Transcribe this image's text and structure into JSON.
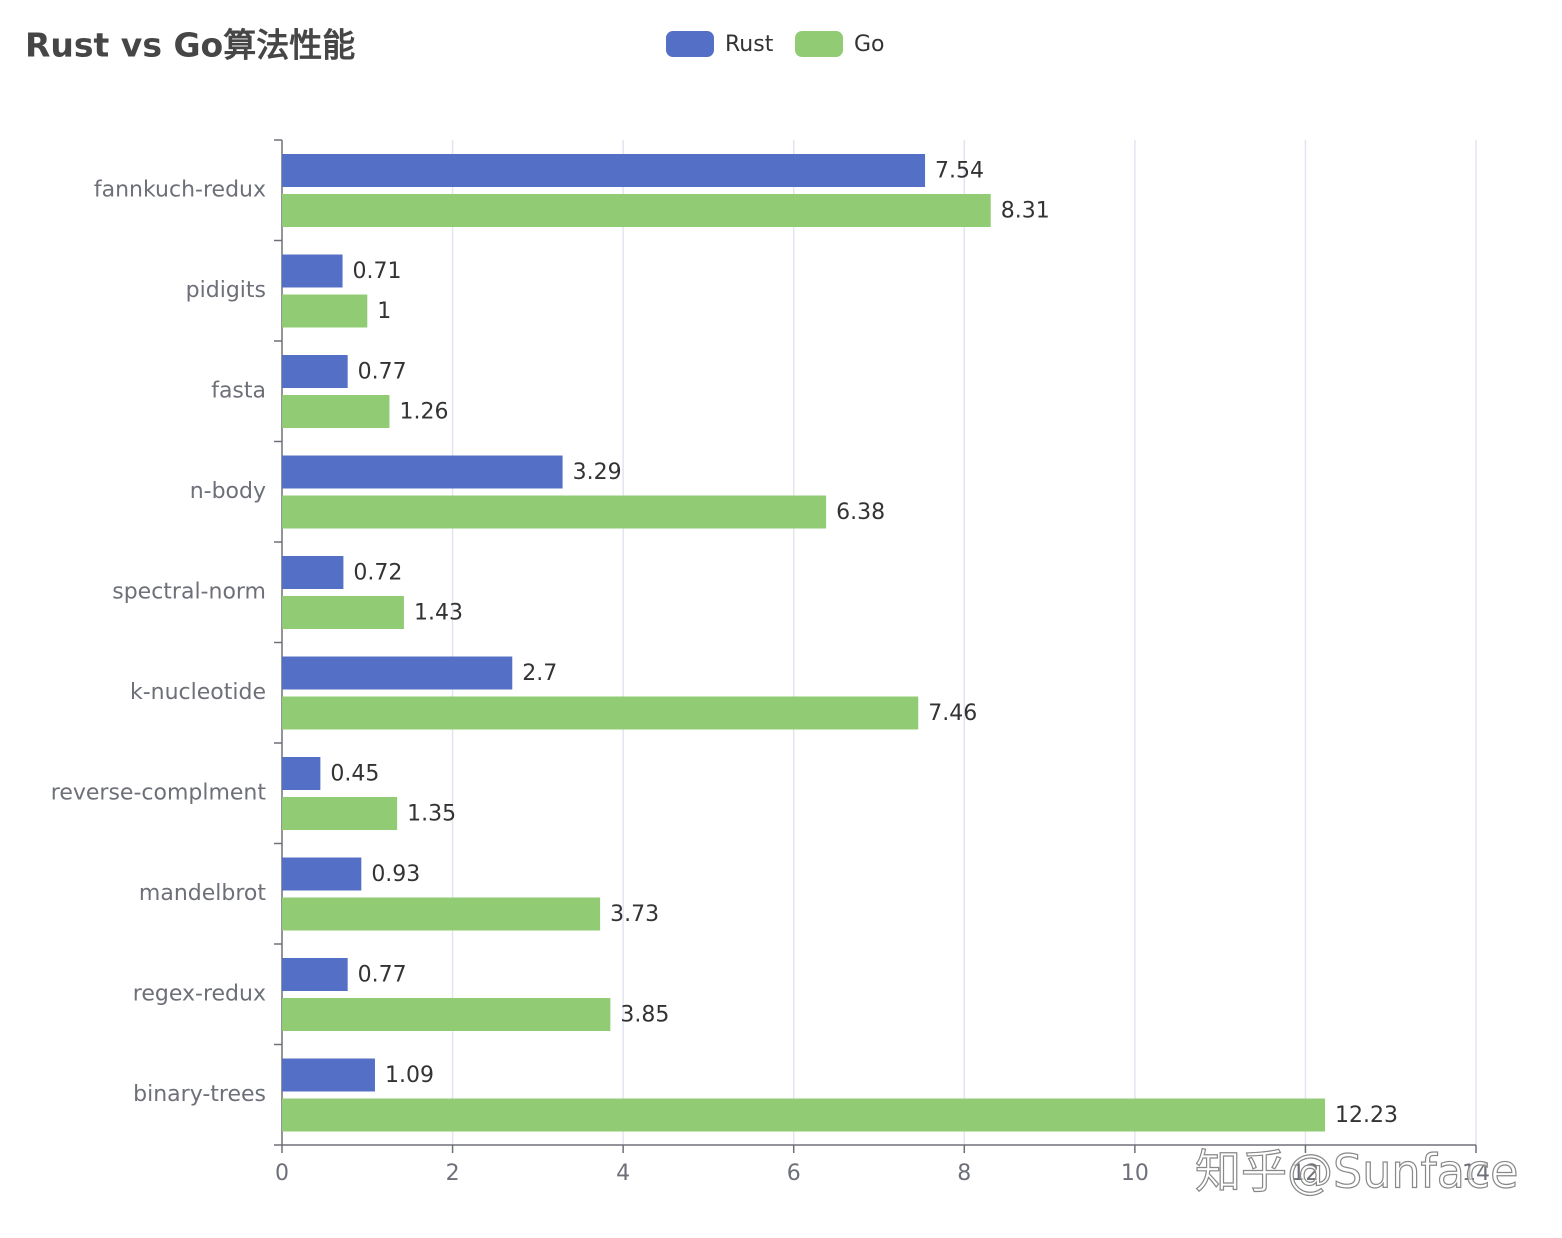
{
  "chart_data": {
    "type": "bar",
    "orientation": "horizontal",
    "title": "Rust vs Go算法性能",
    "categories": [
      "fannkuch-redux",
      "pidigits",
      "fasta",
      "n-body",
      "spectral-norm",
      "k-nucleotide",
      "reverse-complment",
      "mandelbrot",
      "regex-redux",
      "binary-trees"
    ],
    "series": [
      {
        "name": "Rust",
        "color": "#5470c6",
        "values": [
          7.54,
          0.71,
          0.77,
          3.29,
          0.72,
          2.7,
          0.45,
          0.93,
          0.77,
          1.09
        ]
      },
      {
        "name": "Go",
        "color": "#91cc75",
        "values": [
          8.31,
          1,
          1.26,
          6.38,
          1.43,
          7.46,
          1.35,
          3.73,
          3.85,
          12.23
        ]
      }
    ],
    "xlim": [
      0,
      14
    ],
    "xticks": [
      0,
      2,
      4,
      6,
      8,
      10,
      12,
      14
    ],
    "grid": true,
    "legend": "top",
    "watermark": "知乎@Sunface"
  }
}
